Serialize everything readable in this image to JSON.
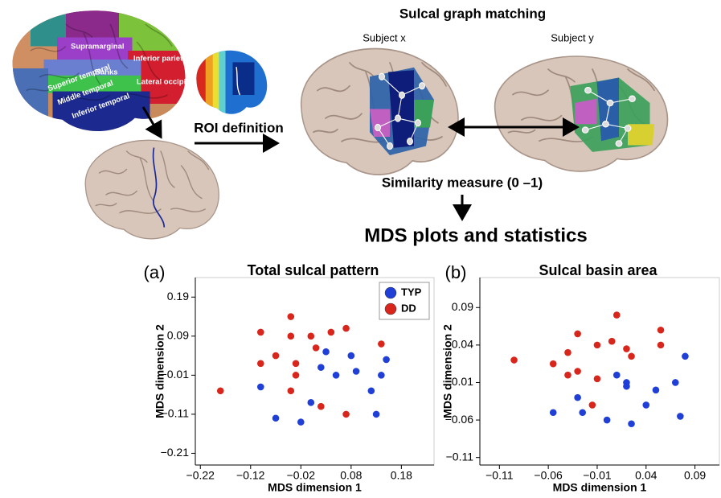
{
  "diagram": {
    "title": "Sulcal graph matching",
    "subject_x": "Subject x",
    "subject_y": "Subject y",
    "roi_definition": "ROI definition",
    "similarity": "Similarity measure (0 –1)",
    "mds": "MDS plots and statistics",
    "regions": [
      "Supramarginal",
      "Inferior parietal",
      "Banks",
      "Superior temporal",
      "Middle temporal",
      "Inferior temporal",
      "Lateral occipita"
    ]
  },
  "chart_data": [
    {
      "type": "scatter",
      "panel_label": "(a)",
      "title": "Total sulcal pattern",
      "xlabel": "MDS dimension 1",
      "ylabel": "MDS dimension 2",
      "xlim": [
        -0.23,
        0.245
      ],
      "ylim": [
        -0.24,
        0.24
      ],
      "xticks": [
        {
          "value": -0.22,
          "label": "−0.22"
        },
        {
          "value": -0.12,
          "label": "−0.12"
        },
        {
          "value": -0.02,
          "label": "−0.02"
        },
        0.08,
        0.18
      ],
      "yticks": [
        {
          "value": -0.21,
          "label": "−0.21"
        },
        {
          "value": -0.11,
          "label": "−0.11"
        },
        {
          "value": -0.01,
          "label": "−0.01"
        },
        0.09,
        0.19
      ],
      "legend": "upper right",
      "series": [
        {
          "name": "TYP",
          "color": "#1f3fd6",
          "x": [
            -0.1,
            -0.07,
            -0.02,
            0.0,
            0.02,
            0.03,
            0.05,
            0.08,
            0.09,
            0.12,
            0.13,
            0.14,
            0.15
          ],
          "y": [
            -0.04,
            -0.12,
            -0.13,
            -0.08,
            0.01,
            0.05,
            -0.01,
            0.04,
            0.0,
            -0.05,
            -0.11,
            -0.01,
            0.03
          ]
        },
        {
          "name": "DD",
          "color": "#d9261c",
          "x": [
            -0.18,
            -0.1,
            -0.1,
            -0.07,
            -0.04,
            -0.04,
            -0.03,
            -0.03,
            -0.04,
            0.0,
            0.01,
            0.02,
            0.04,
            0.07,
            0.07,
            0.14
          ],
          "y": [
            -0.05,
            0.1,
            0.02,
            0.04,
            0.14,
            0.09,
            0.02,
            -0.01,
            -0.05,
            0.09,
            0.06,
            -0.09,
            0.1,
            0.11,
            -0.11,
            0.07
          ]
        }
      ]
    },
    {
      "type": "scatter",
      "panel_label": "(b)",
      "title": "Sulcal basin area",
      "xlabel": "MDS dimension 1",
      "ylabel": "MDS dimension 2",
      "xlim": [
        -0.13,
        0.115
      ],
      "ylim": [
        -0.12,
        0.13
      ],
      "xticks": [
        {
          "value": -0.11,
          "label": "−0.11"
        },
        {
          "value": -0.06,
          "label": "−0.06"
        },
        {
          "value": -0.01,
          "label": "−0.01"
        },
        0.04,
        0.09
      ],
      "yticks": [
        {
          "value": -0.11,
          "label": "−0.11"
        },
        {
          "value": -0.06,
          "label": "−0.06"
        },
        {
          "value": -0.01,
          "label": "−0.01"
        },
        0.04,
        0.09
      ],
      "series": [
        {
          "color": "#1f3fd6",
          "x": [
            -0.055,
            -0.03,
            -0.025,
            0.0,
            0.01,
            0.02,
            0.02,
            0.025,
            0.04,
            0.05,
            0.07,
            0.075,
            0.08
          ],
          "y": [
            -0.05,
            -0.03,
            -0.05,
            -0.06,
            0.0,
            -0.01,
            -0.015,
            -0.065,
            -0.04,
            -0.02,
            -0.01,
            -0.055,
            0.025
          ]
        },
        {
          "color": "#d9261c",
          "x": [
            -0.095,
            -0.055,
            -0.04,
            -0.04,
            -0.03,
            -0.03,
            -0.015,
            -0.01,
            -0.01,
            0.005,
            0.01,
            0.02,
            0.025,
            0.055,
            0.055
          ],
          "y": [
            0.02,
            0.015,
            0.0,
            0.03,
            0.055,
            0.005,
            -0.04,
            -0.005,
            0.04,
            0.045,
            0.08,
            0.035,
            0.025,
            0.04,
            0.06
          ]
        }
      ]
    }
  ]
}
